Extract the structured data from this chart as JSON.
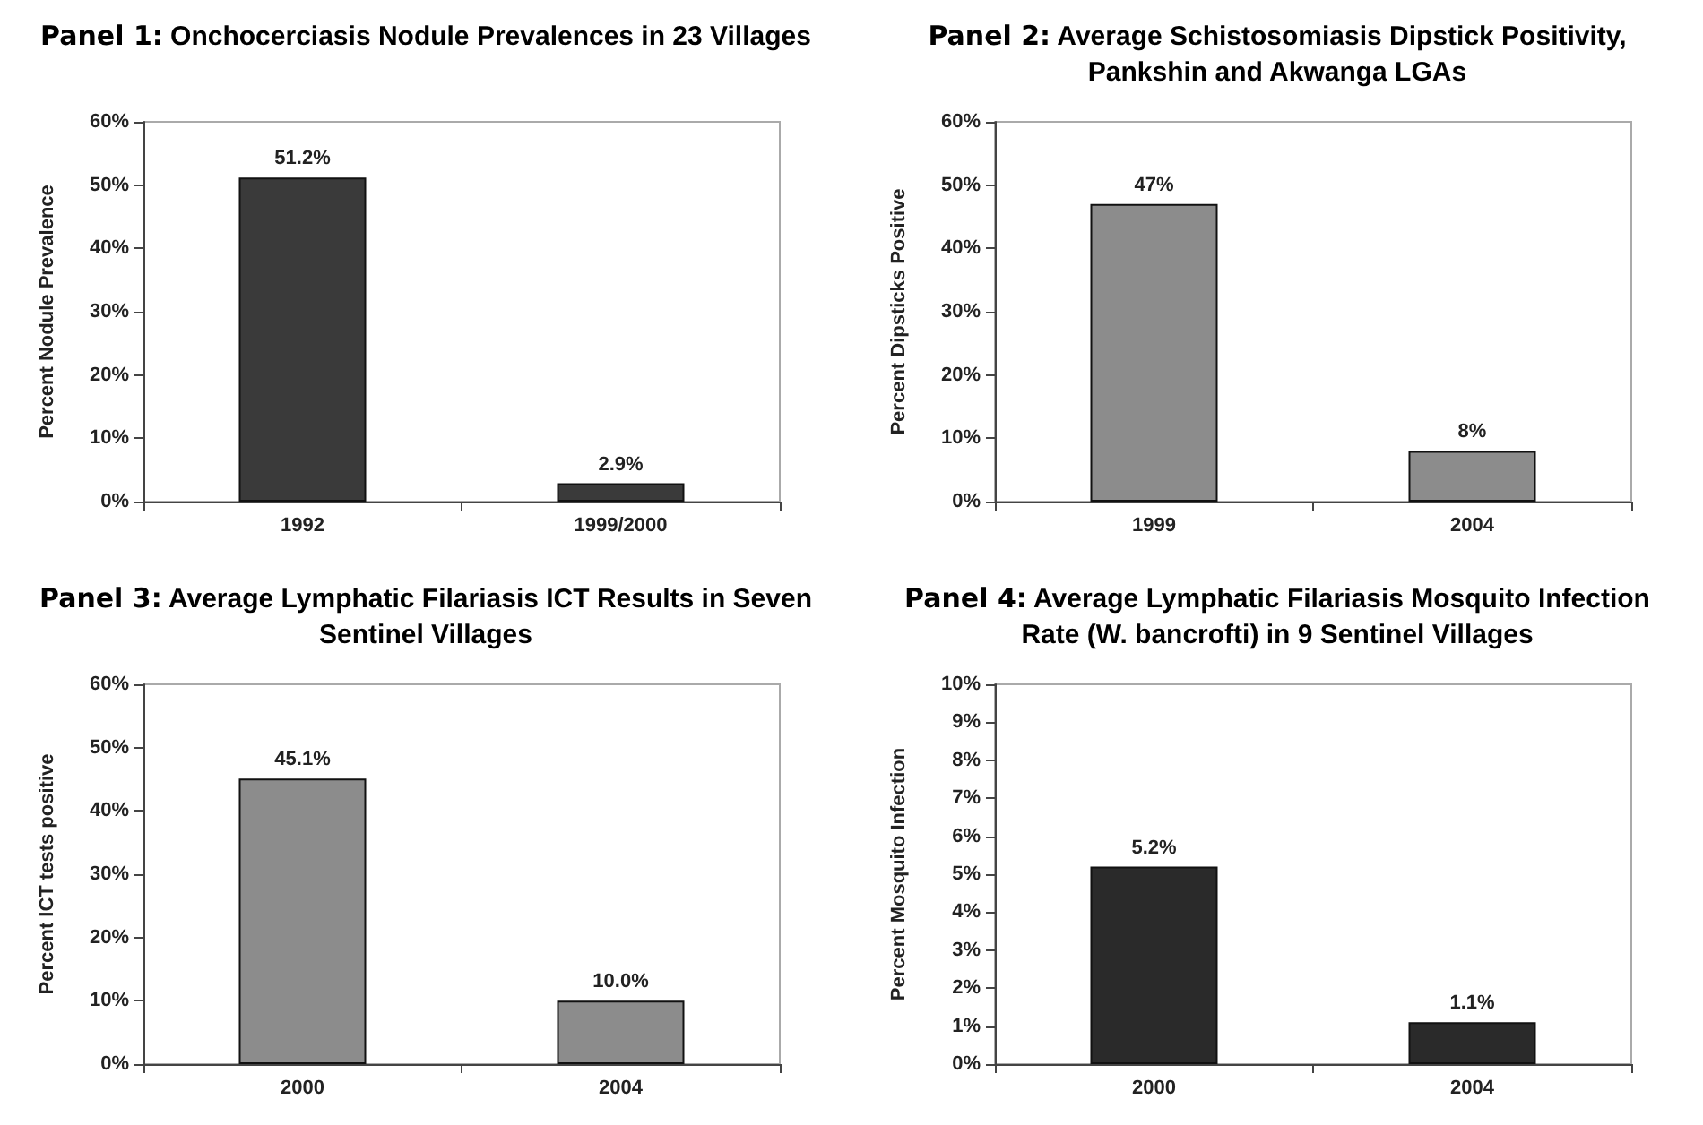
{
  "chart_data": [
    {
      "type": "bar",
      "title": "Panel 1: Onchocerciasis Nodule Prevalences in 23 Villages",
      "ylabel": "Percent Nodule Prevalence",
      "categories": [
        "1992",
        "1999/2000"
      ],
      "values": [
        51.2,
        2.9
      ],
      "color": "#3a3a3a",
      "value_labels": [
        "51.2%",
        "2.9%"
      ],
      "ylim": [
        0,
        60
      ],
      "yticks": [
        {
          "value": 0,
          "label": "0%"
        },
        {
          "value": 10,
          "label": "10%"
        },
        {
          "value": 20,
          "label": "20%"
        },
        {
          "value": 30,
          "label": "30%"
        },
        {
          "value": 40,
          "label": "40%"
        },
        {
          "value": 50,
          "label": "50%"
        },
        {
          "value": 60,
          "label": "60%"
        }
      ]
    },
    {
      "type": "bar",
      "title": "Panel 2: Average Schistosomiasis Dipstick Positivity, Pankshin and Akwanga LGAs",
      "ylabel": "Percent Dipsticks Positive",
      "categories": [
        "1999",
        "2004"
      ],
      "values": [
        47,
        8
      ],
      "color": "#8c8c8c",
      "value_labels": [
        "47%",
        "8%"
      ],
      "ylim": [
        0,
        60
      ],
      "yticks": [
        {
          "value": 0,
          "label": "0%"
        },
        {
          "value": 10,
          "label": "10%"
        },
        {
          "value": 20,
          "label": "20%"
        },
        {
          "value": 30,
          "label": "30%"
        },
        {
          "value": 40,
          "label": "40%"
        },
        {
          "value": 50,
          "label": "50%"
        },
        {
          "value": 60,
          "label": "60%"
        }
      ]
    },
    {
      "type": "bar",
      "title": "Panel 3: Average Lymphatic Filariasis ICT Results in Seven Sentinel Villages",
      "ylabel": "Percent ICT tests positive",
      "categories": [
        "2000",
        "2004"
      ],
      "values": [
        45.1,
        10.0
      ],
      "color": "#8c8c8c",
      "value_labels": [
        "45.1%",
        "10.0%"
      ],
      "ylim": [
        0,
        60
      ],
      "yticks": [
        {
          "value": 0,
          "label": "0%"
        },
        {
          "value": 10,
          "label": "10%"
        },
        {
          "value": 20,
          "label": "20%"
        },
        {
          "value": 30,
          "label": "30%"
        },
        {
          "value": 40,
          "label": "40%"
        },
        {
          "value": 50,
          "label": "50%"
        },
        {
          "value": 60,
          "label": "60%"
        }
      ]
    },
    {
      "type": "bar",
      "title": "Panel 4: Average Lymphatic Filariasis Mosquito Infection Rate (W. bancrofti) in 9 Sentinel Villages",
      "ylabel": "Percent Mosquito Infection",
      "categories": [
        "2000",
        "2004"
      ],
      "values": [
        5.2,
        1.1
      ],
      "color": "#2a2a2a",
      "value_labels": [
        "5.2%",
        "1.1%"
      ],
      "ylim": [
        0,
        10
      ],
      "yticks": [
        {
          "value": 0,
          "label": "0%"
        },
        {
          "value": 1,
          "label": "1%"
        },
        {
          "value": 2,
          "label": "2%"
        },
        {
          "value": 3,
          "label": "3%"
        },
        {
          "value": 4,
          "label": "4%"
        },
        {
          "value": 5,
          "label": "5%"
        },
        {
          "value": 6,
          "label": "6%"
        },
        {
          "value": 7,
          "label": "7%"
        },
        {
          "value": 8,
          "label": "8%"
        },
        {
          "value": 9,
          "label": "9%"
        },
        {
          "value": 10,
          "label": "10%"
        }
      ]
    }
  ]
}
